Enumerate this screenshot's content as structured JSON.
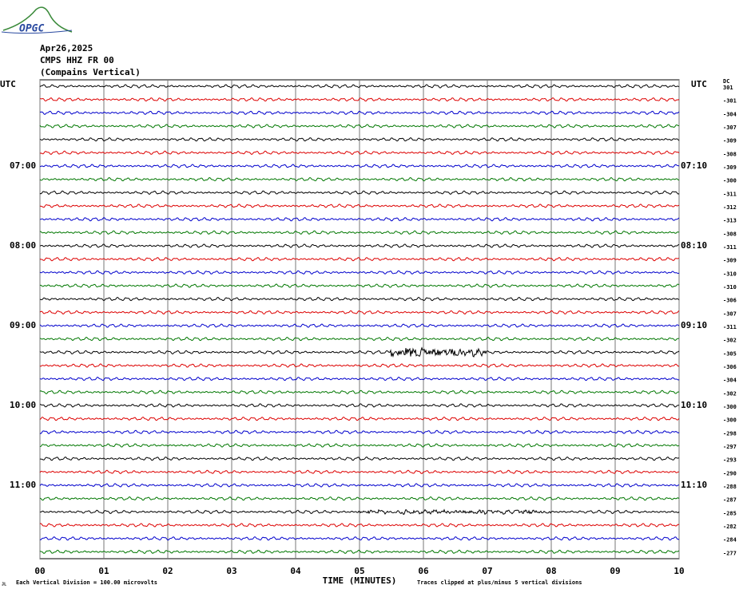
{
  "header": {
    "logo": "OPGC",
    "date": "Apr26,2025",
    "station": "CMPS HHZ FR 00",
    "location": "(Compains Vertical)",
    "dc_label": "DC"
  },
  "left_labels": [
    "UTC",
    "07:00",
    "08:00",
    "09:00",
    "10:00",
    "11:00"
  ],
  "right_labels": [
    "UTC",
    "07:10",
    "08:10",
    "09:10",
    "10:10",
    "11:10"
  ],
  "dc_values": [
    "301",
    "-301",
    "-304",
    "-307",
    "-309",
    "-308",
    "-309",
    "-300",
    "-311",
    "-312",
    "-313",
    "-308",
    "-311",
    "-309",
    "-310",
    "-310",
    "-306",
    "-307",
    "-311",
    "-302",
    "-305",
    "-306",
    "-304",
    "-302",
    "-300",
    "-300",
    "-298",
    "-297",
    "-293",
    "-290",
    "-288",
    "-287",
    "-285",
    "-282",
    "-284",
    "-277"
  ],
  "x_ticks": [
    "00",
    "01",
    "02",
    "03",
    "04",
    "05",
    "06",
    "07",
    "08",
    "09",
    "10"
  ],
  "x_title": "TIME (MINUTES)",
  "footer": {
    "division_note": "Each Vertical Division =  100.00 microvolts",
    "clip_note": "Traces clipped at plus/minus 5 vertical divisions",
    "corner": "JL"
  }
}
